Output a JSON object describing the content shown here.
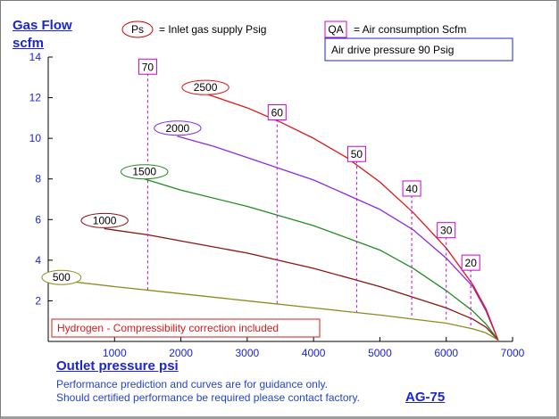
{
  "chart_data": {
    "type": "line",
    "title": "",
    "ylabel": "Gas Flow",
    "ylabel_unit": "scfm",
    "xlabel": "Outlet pressure   psi",
    "xlim": [
      0,
      7000
    ],
    "ylim": [
      0,
      14
    ],
    "xticks": [
      1000,
      2000,
      3000,
      4000,
      5000,
      6000,
      7000
    ],
    "yticks": [
      2,
      4,
      6,
      8,
      10,
      12,
      14
    ],
    "grid": false,
    "legend": {
      "ps_symbol": "Ps",
      "ps_text": "= Inlet gas supply  Psig",
      "qa_symbol": "QA",
      "qa_text": "= Air consumption  Scfm",
      "drive_text": "Air drive pressure  90 Psig"
    },
    "note": "Hydrogen - Compressibility correction included",
    "model": "AG-75",
    "footer_lines": [
      "Performance prediction and curves are for guidance only.",
      "Should certified performance be required please contact factory."
    ],
    "colors": {
      "axis_text": "#1b24d6",
      "marker": "#d100d1",
      "note": "#d81b1b"
    },
    "series": [
      {
        "name": "500",
        "color": "#8b8b1d",
        "label_x": 200,
        "label_y": 3.15,
        "points": [
          [
            200,
            3.0
          ],
          [
            1000,
            2.7
          ],
          [
            2000,
            2.35
          ],
          [
            3000,
            2.0
          ],
          [
            4000,
            1.65
          ],
          [
            5000,
            1.3
          ],
          [
            6000,
            0.9
          ],
          [
            6400,
            0.62
          ],
          [
            6600,
            0.42
          ],
          [
            6780,
            0.08
          ]
        ]
      },
      {
        "name": "1000",
        "color": "#8b1212",
        "label_x": 850,
        "label_y": 5.95,
        "points": [
          [
            850,
            5.55
          ],
          [
            1500,
            5.25
          ],
          [
            2000,
            4.95
          ],
          [
            3000,
            4.35
          ],
          [
            4000,
            3.6
          ],
          [
            5000,
            2.7
          ],
          [
            6000,
            1.65
          ],
          [
            6400,
            1.1
          ],
          [
            6600,
            0.7
          ],
          [
            6780,
            0.08
          ]
        ]
      },
      {
        "name": "1500",
        "color": "#228b22",
        "label_x": 1450,
        "label_y": 8.35,
        "points": [
          [
            1450,
            8.0
          ],
          [
            2000,
            7.45
          ],
          [
            3000,
            6.65
          ],
          [
            4000,
            5.7
          ],
          [
            5000,
            4.5
          ],
          [
            5500,
            3.6
          ],
          [
            6000,
            2.5
          ],
          [
            6400,
            1.5
          ],
          [
            6600,
            0.85
          ],
          [
            6780,
            0.08
          ]
        ]
      },
      {
        "name": "2000",
        "color": "#8b2be2",
        "label_x": 1950,
        "label_y": 10.5,
        "points": [
          [
            1950,
            10.1
          ],
          [
            2500,
            9.6
          ],
          [
            3000,
            9.05
          ],
          [
            4000,
            7.95
          ],
          [
            5000,
            6.5
          ],
          [
            5500,
            5.5
          ],
          [
            6000,
            4.1
          ],
          [
            6400,
            2.7
          ],
          [
            6600,
            1.5
          ],
          [
            6780,
            0.08
          ]
        ]
      },
      {
        "name": "2500",
        "color": "#e01717",
        "label_x": 2370,
        "label_y": 12.5,
        "points": [
          [
            2370,
            12.2
          ],
          [
            3000,
            11.5
          ],
          [
            3500,
            10.8
          ],
          [
            4000,
            10.0
          ],
          [
            4500,
            9.05
          ],
          [
            5000,
            7.85
          ],
          [
            5500,
            6.35
          ],
          [
            6000,
            4.6
          ],
          [
            6400,
            2.8
          ],
          [
            6600,
            1.6
          ],
          [
            6780,
            0.08
          ]
        ]
      }
    ],
    "qa_markers": [
      {
        "label": "70",
        "x": 1500,
        "y_top": 13.55,
        "y_bottom": 2.5
      },
      {
        "label": "60",
        "x": 3450,
        "y_top": 11.3,
        "y_bottom": 1.8
      },
      {
        "label": "50",
        "x": 4650,
        "y_top": 9.25,
        "y_bottom": 1.45
      },
      {
        "label": "40",
        "x": 5480,
        "y_top": 7.55,
        "y_bottom": 1.2
      },
      {
        "label": "30",
        "x": 6000,
        "y_top": 5.5,
        "y_bottom": 0.95
      },
      {
        "label": "20",
        "x": 6370,
        "y_top": 3.9,
        "y_bottom": 0.7
      }
    ]
  }
}
